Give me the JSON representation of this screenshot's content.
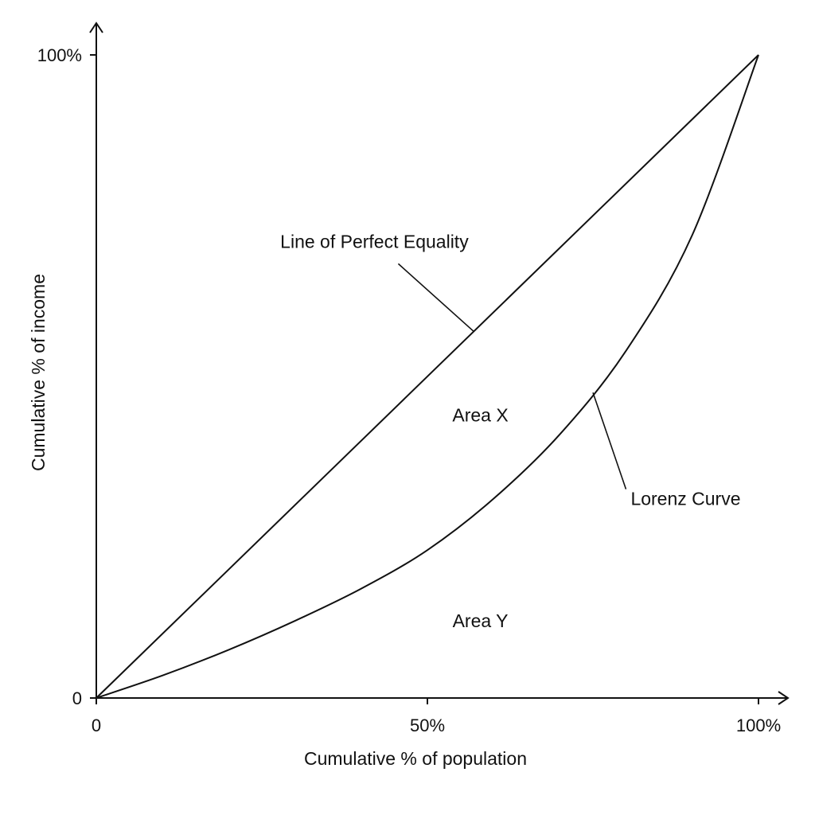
{
  "chart_data": {
    "type": "line",
    "title": "",
    "xlabel": "Cumulative % of population",
    "ylabel": "Cumulative % of income",
    "xlim": [
      0,
      100
    ],
    "ylim": [
      0,
      100
    ],
    "grid": false,
    "x_ticks": [
      {
        "value": 0,
        "label": "0"
      },
      {
        "value": 50,
        "label": "50%"
      },
      {
        "value": 100,
        "label": "100%"
      }
    ],
    "y_ticks": [
      {
        "value": 0,
        "label": "0"
      },
      {
        "value": 100,
        "label": "100%"
      }
    ],
    "series": [
      {
        "name": "Line of Perfect Equality",
        "points": [
          [
            0,
            0
          ],
          [
            100,
            100
          ]
        ]
      },
      {
        "name": "Lorenz Curve",
        "points": [
          [
            0,
            0
          ],
          [
            10,
            3.5
          ],
          [
            20,
            7.5
          ],
          [
            30,
            12
          ],
          [
            40,
            17
          ],
          [
            50,
            23
          ],
          [
            60,
            31
          ],
          [
            70,
            41
          ],
          [
            80,
            54
          ],
          [
            90,
            72
          ],
          [
            100,
            100
          ]
        ]
      }
    ],
    "annotations": [
      {
        "text": "Line of Perfect Equality",
        "target_series": "Line of Perfect Equality",
        "target_x": 57,
        "label_x": 42,
        "label_y": 70
      },
      {
        "text": "Lorenz Curve",
        "target_series": "Lorenz Curve",
        "target_x": 75,
        "label_x": 89,
        "label_y": 30
      },
      {
        "text": "Area X",
        "label_x": 58,
        "label_y": 43
      },
      {
        "text": "Area Y",
        "label_x": 58,
        "label_y": 11
      }
    ]
  }
}
